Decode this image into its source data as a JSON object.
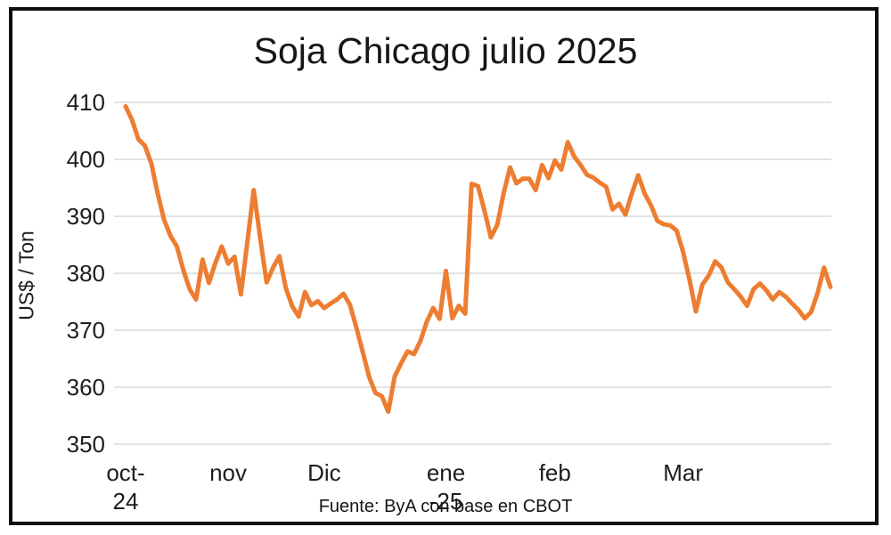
{
  "chart_data": {
    "type": "line",
    "title": "Soja Chicago julio 2025",
    "ylabel": "US$ / Ton",
    "xlabel": "",
    "source_note": "Fuente: ByA con base en CBOT",
    "ylim": [
      350,
      410
    ],
    "y_ticks": [
      410,
      400,
      390,
      380,
      370,
      360,
      350
    ],
    "grid": "horizontal-only",
    "legend_position": "none",
    "line_color": "#ED7D31",
    "gridline_color": "#D9D9D9",
    "x_axis_labels": [
      {
        "line1": "oct-",
        "line2": "24",
        "index": 0
      },
      {
        "line1": "nov",
        "line2": "",
        "index": 16
      },
      {
        "line1": "Dic",
        "line2": "",
        "index": 31
      },
      {
        "line1": "ene",
        "line2": "-25",
        "index": 50
      },
      {
        "line1": "feb",
        "line2": "",
        "index": 67
      },
      {
        "line1": "Mar",
        "line2": "",
        "index": 87
      }
    ],
    "series": [
      {
        "name": "Soja Chicago julio 2025 (US$/Ton)",
        "values": [
          409.3,
          406.9,
          403.5,
          402.4,
          399.3,
          394.0,
          389.4,
          386.6,
          384.7,
          380.6,
          377.2,
          375.4,
          382.4,
          378.3,
          381.8,
          384.7,
          381.7,
          382.9,
          376.3,
          385.5,
          394.6,
          386.2,
          378.4,
          381.0,
          383.0,
          377.4,
          374.2,
          372.4,
          376.7,
          374.4,
          375.1,
          373.9,
          374.7,
          375.4,
          376.4,
          374.5,
          370.5,
          366.2,
          361.8,
          359.0,
          358.4,
          355.7,
          361.9,
          364.2,
          366.3,
          365.8,
          368.1,
          371.5,
          373.9,
          372.0,
          380.4,
          372.1,
          374.3,
          372.9,
          395.7,
          395.3,
          391.0,
          386.3,
          388.5,
          394.1,
          398.6,
          395.8,
          396.6,
          396.6,
          394.6,
          399.0,
          396.7,
          399.8,
          398.2,
          403.0,
          400.5,
          399.0,
          397.3,
          396.8,
          395.9,
          395.2,
          391.2,
          392.2,
          390.3,
          394.0,
          397.2,
          394.0,
          391.9,
          389.2,
          388.6,
          388.4,
          387.5,
          383.8,
          378.9,
          373.3,
          378.0,
          379.6,
          382.1,
          381.0,
          378.4,
          377.2,
          375.9,
          374.3,
          377.2,
          378.2,
          377.0,
          375.4,
          376.7,
          375.9,
          374.7,
          373.6,
          372.1,
          373.2,
          376.5,
          381.0,
          377.6
        ]
      }
    ]
  }
}
